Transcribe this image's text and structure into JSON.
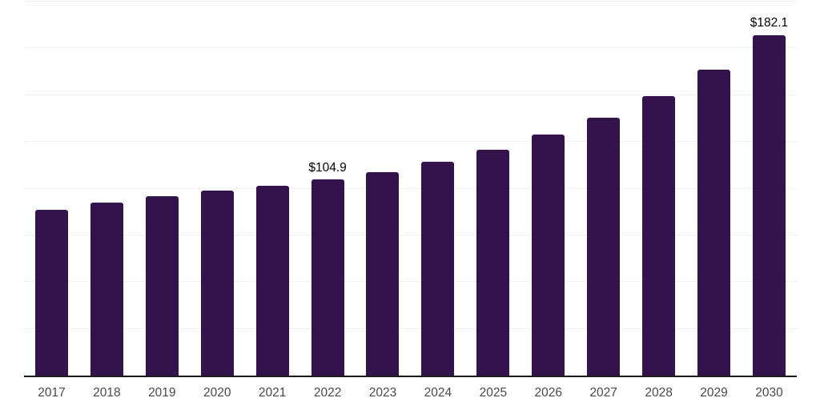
{
  "chart_data": {
    "type": "bar",
    "title": "",
    "xlabel": "",
    "ylabel": "",
    "categories": [
      "2017",
      "2018",
      "2019",
      "2020",
      "2021",
      "2022",
      "2023",
      "2024",
      "2025",
      "2026",
      "2027",
      "2028",
      "2029",
      "2030"
    ],
    "values": [
      88.8,
      92.4,
      95.8,
      98.8,
      101.3,
      104.9,
      108.6,
      114.5,
      120.9,
      129.0,
      137.8,
      149.5,
      163.8,
      182.1
    ],
    "annotations": [
      {
        "category": "2022",
        "text": "$104.9"
      },
      {
        "category": "2030",
        "text": "$182.1"
      }
    ],
    "ylim": [
      0,
      200
    ],
    "grid_step": 25,
    "grid": "horizontal-only",
    "legend": "none",
    "y_tick_labels_visible": false,
    "colors": {
      "bar": "#34124b",
      "gridline": "#f1f1f1",
      "axis_line": "#1a1a1a",
      "tick_label": "#4a4a4a",
      "value_label": "#000000",
      "background": "#ffffff"
    }
  }
}
